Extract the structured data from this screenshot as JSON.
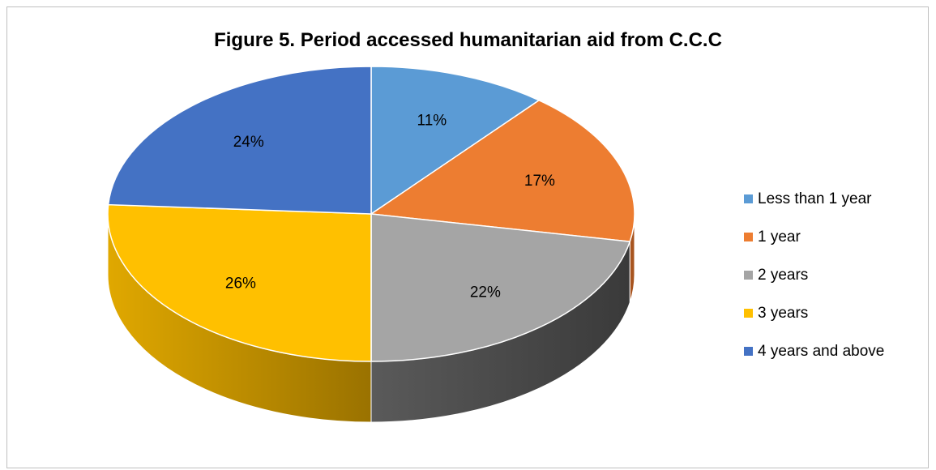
{
  "chart_data": {
    "type": "pie",
    "title": "Figure 5. Period accessed humanitarian aid from C.C.C",
    "categories": [
      "Less than 1 year",
      "1 year",
      "2 years",
      "3 years",
      "4 years and above"
    ],
    "values": [
      11,
      17,
      22,
      26,
      24
    ],
    "labels": [
      "11%",
      "17%",
      "22%",
      "26%",
      "24%"
    ],
    "colors": [
      "#5b9bd5",
      "#ed7d31",
      "#a5a5a5",
      "#ffc000",
      "#4472c4"
    ],
    "side_colors": [
      "#3d6a94",
      "#a85520",
      "#454545",
      "#b88a00",
      "#2f5088"
    ],
    "legend_position": "right",
    "style": "3d"
  }
}
